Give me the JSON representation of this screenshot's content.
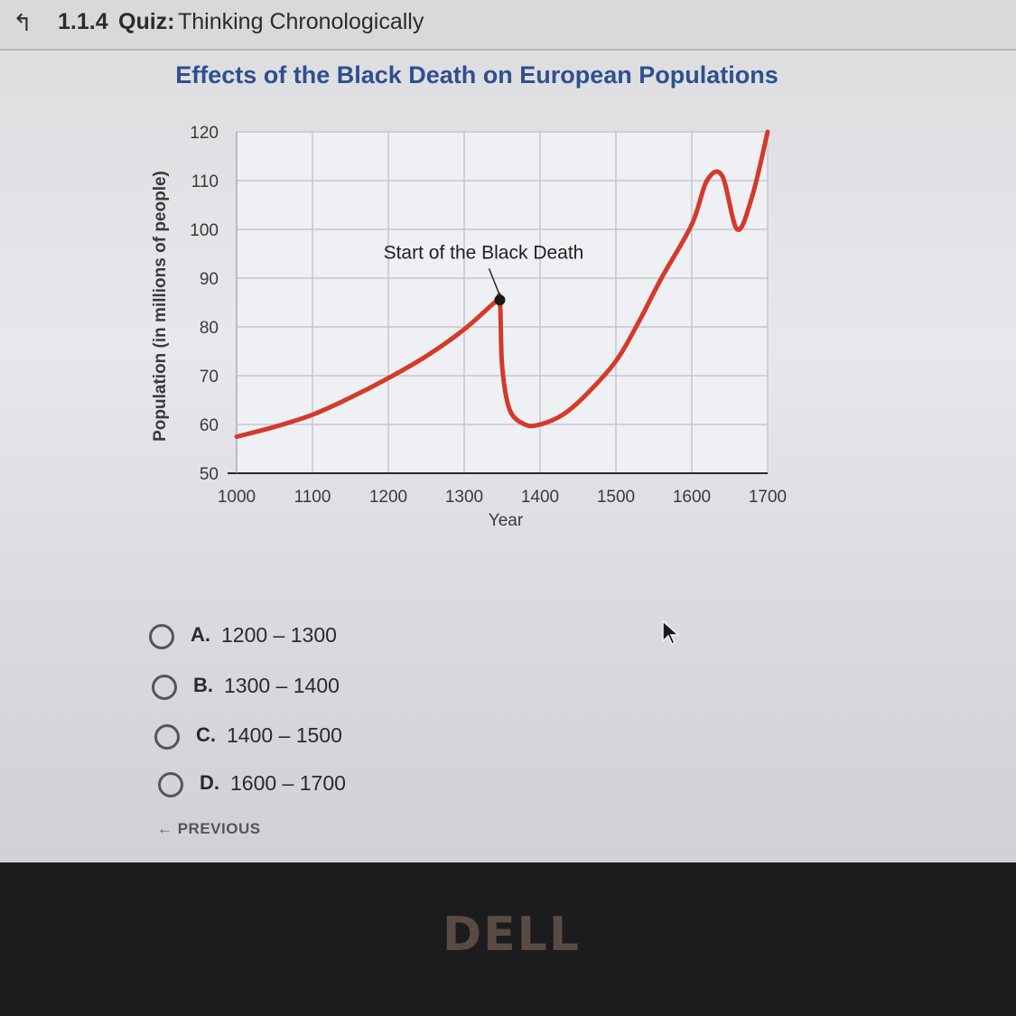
{
  "header": {
    "back_icon": "↰",
    "quiz_code": "1.1.4",
    "quiz_type": "Quiz:",
    "quiz_title": "Thinking Chronologically"
  },
  "chart_data": {
    "type": "line",
    "title": "Effects of the Black Death on European Populations",
    "xlabel": "Year",
    "ylabel": "Population (in millions of people)",
    "xlim": [
      1000,
      1700
    ],
    "ylim": [
      50,
      120
    ],
    "x_ticks": [
      1000,
      1100,
      1200,
      1300,
      1400,
      1500,
      1600,
      1700
    ],
    "y_ticks": [
      50,
      60,
      70,
      80,
      90,
      100,
      110,
      120
    ],
    "grid": true,
    "line_color": "#d43a2a",
    "series": [
      {
        "x": [
          1000,
          1050,
          1100,
          1150,
          1200,
          1250,
          1300,
          1340,
          1347,
          1350,
          1360,
          1380,
          1400,
          1430,
          1460,
          1500,
          1530,
          1560,
          1600,
          1620,
          1640,
          1660,
          1680,
          1700
        ],
        "y": [
          57.5,
          59.5,
          62,
          65.5,
          69.5,
          74,
          79.5,
          85,
          85.5,
          72,
          63,
          60,
          60,
          62,
          66,
          73,
          81,
          90,
          101,
          110,
          111,
          100,
          107,
          120
        ]
      }
    ],
    "annotations": [
      {
        "text": "Start of the Black Death",
        "x": 1347,
        "y": 85.5
      }
    ]
  },
  "options": [
    {
      "letter": "A.",
      "text": "1200 – 1300"
    },
    {
      "letter": "B.",
      "text": "1300 – 1400"
    },
    {
      "letter": "C.",
      "text": "1400 – 1500"
    },
    {
      "letter": "D.",
      "text": "1600 – 1700"
    }
  ],
  "nav": {
    "previous_label": "← PREVIOUS"
  },
  "device": {
    "logo_text": "DELL"
  },
  "icons": [
    "back-icon",
    "radio-icon",
    "cursor-icon",
    "arrow-left-icon"
  ]
}
